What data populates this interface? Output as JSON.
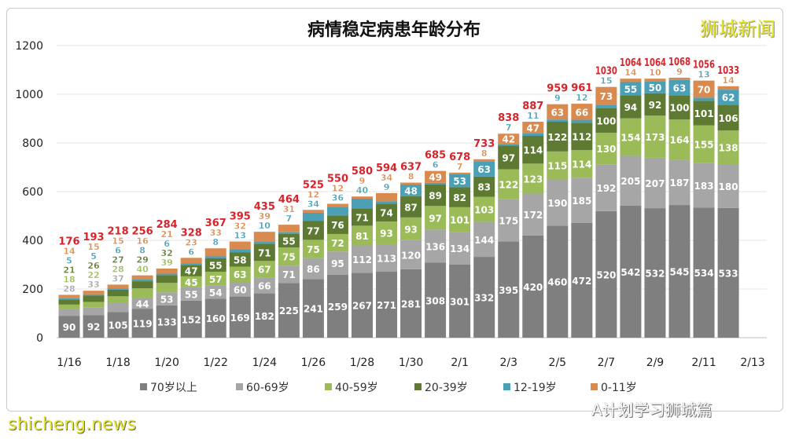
{
  "chart_data": {
    "type": "bar",
    "stacked": true,
    "title": "病情稳定病患年龄分布",
    "categories": [
      "1/16",
      "1/17",
      "1/18",
      "1/19",
      "1/20",
      "1/21",
      "1/22",
      "1/23",
      "1/24",
      "1/25",
      "1/26",
      "1/27",
      "1/28",
      "1/29",
      "1/30",
      "1/31",
      "2/1",
      "2/2",
      "2/3",
      "2/4",
      "2/5",
      "2/6",
      "2/7",
      "2/8",
      "2/9",
      "2/10",
      "2/11",
      "2/12"
    ],
    "x_tick_labels": [
      "1/16",
      "1/18",
      "1/20",
      "1/22",
      "1/24",
      "1/26",
      "1/28",
      "1/30",
      "2/1",
      "2/3",
      "2/5",
      "2/7",
      "2/9",
      "2/11",
      "2/13"
    ],
    "series": [
      {
        "name": "70岁以上",
        "color": "#7f7f7f",
        "values": [
          90,
          92,
          105,
          119,
          133,
          152,
          160,
          169,
          182,
          225,
          241,
          259,
          267,
          271,
          281,
          308,
          301,
          332,
          395,
          420,
          460,
          472,
          520,
          542,
          532,
          545,
          534,
          533
        ]
      },
      {
        "name": "60-69岁",
        "color": "#a6a6a6",
        "values": [
          28,
          33,
          37,
          44,
          53,
          55,
          54,
          60,
          66,
          71,
          86,
          95,
          112,
          113,
          120,
          136,
          134,
          144,
          175,
          172,
          190,
          185,
          192,
          205,
          207,
          187,
          183,
          180
        ]
      },
      {
        "name": "40-59岁",
        "color": "#9bbb59",
        "values": [
          18,
          22,
          28,
          40,
          39,
          45,
          57,
          63,
          67,
          75,
          75,
          72,
          81,
          93,
          93,
          97,
          101,
          103,
          122,
          123,
          115,
          114,
          130,
          154,
          173,
          164,
          155,
          138
        ]
      },
      {
        "name": "20-39岁",
        "color": "#5e7a32",
        "values": [
          21,
          26,
          27,
          29,
          32,
          47,
          55,
          58,
          71,
          55,
          77,
          76,
          71,
          74,
          87,
          89,
          82,
          83,
          97,
          114,
          122,
          112,
          100,
          94,
          92,
          100,
          101,
          106
        ]
      },
      {
        "name": "12-19岁",
        "color": "#4ba0b6",
        "values": [
          5,
          5,
          6,
          8,
          6,
          6,
          8,
          13,
          10,
          7,
          34,
          36,
          40,
          9,
          48,
          6,
          53,
          63,
          7,
          11,
          9,
          12,
          15,
          55,
          50,
          63,
          13,
          62
        ]
      },
      {
        "name": "0-11岁",
        "color": "#d98a4f",
        "values": [
          14,
          15,
          15,
          16,
          21,
          23,
          33,
          32,
          39,
          31,
          12,
          12,
          9,
          34,
          8,
          49,
          7,
          8,
          42,
          47,
          63,
          66,
          73,
          14,
          10,
          9,
          70,
          14
        ]
      }
    ],
    "totals": [
      176,
      193,
      218,
      256,
      284,
      328,
      367,
      395,
      435,
      464,
      525,
      550,
      580,
      594,
      637,
      685,
      678,
      733,
      838,
      887,
      959,
      961,
      1030,
      1064,
      1064,
      1068,
      1056,
      1033
    ],
    "ylim": [
      0,
      1200
    ],
    "y_ticks": [
      0,
      200,
      400,
      600,
      800,
      1000,
      1200
    ],
    "grid": true,
    "legend": "bottom"
  },
  "logo_text": "狮城新闻",
  "watermarks": {
    "site": "shicheng.news",
    "account": "A计划学习狮城篇"
  }
}
